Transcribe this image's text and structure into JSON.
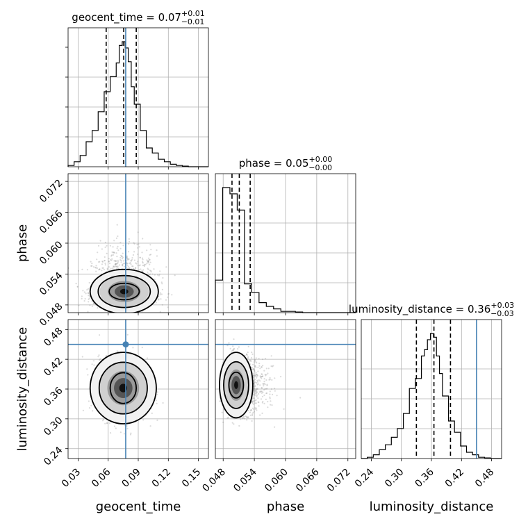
{
  "chart_data": {
    "type": "corner",
    "parameters": [
      {
        "name": "geocent_time",
        "range": [
          0.02,
          0.16
        ],
        "ticks": [
          0.03,
          0.06,
          0.09,
          0.12,
          0.15
        ],
        "tick_labels": [
          "0.03",
          "0.06",
          "0.09",
          "0.12",
          "0.15"
        ],
        "title_text": "geocent_time = 0.07",
        "title_upper": "+0.01",
        "title_lower": "−0.01",
        "quantiles": [
          0.058,
          0.0755,
          0.088
        ],
        "truth": 0.0775,
        "hist_edges": [
          0.02,
          0.026,
          0.032,
          0.038,
          0.044,
          0.05,
          0.056,
          0.062,
          0.068,
          0.071,
          0.074,
          0.077,
          0.08,
          0.083,
          0.086,
          0.092,
          0.098,
          0.104,
          0.11,
          0.116,
          0.122,
          0.128,
          0.134,
          0.14,
          0.146,
          0.152,
          0.16
        ],
        "hist_values": [
          0.01,
          0.04,
          0.09,
          0.2,
          0.29,
          0.44,
          0.6,
          0.72,
          0.83,
          0.97,
          1.0,
          0.95,
          0.84,
          0.64,
          0.5,
          0.29,
          0.15,
          0.11,
          0.06,
          0.04,
          0.02,
          0.01,
          0.005,
          0.0,
          0.0,
          0.0
        ]
      },
      {
        "name": "phase",
        "range": [
          0.0465,
          0.0735
        ],
        "ticks": [
          0.048,
          0.054,
          0.06,
          0.066,
          0.072
        ],
        "tick_labels": [
          "0.048",
          "0.054",
          "0.060",
          "0.066",
          "0.072"
        ],
        "title_text": "phase = 0.05",
        "title_upper": "+0.00",
        "title_lower": "−0.00",
        "quantiles": [
          0.0497,
          0.0511,
          0.0532
        ],
        "truth": null,
        "hist_edges": [
          0.0465,
          0.0479,
          0.0493,
          0.0507,
          0.0521,
          0.0535,
          0.0549,
          0.0563,
          0.0577,
          0.0591,
          0.0605,
          0.0619,
          0.0633,
          0.0647,
          0.0661,
          0.0675,
          0.0689,
          0.0703,
          0.0735
        ],
        "hist_values": [
          0.26,
          1.0,
          0.95,
          0.82,
          0.23,
          0.16,
          0.08,
          0.05,
          0.03,
          0.01,
          0.01,
          0.005,
          0.0,
          0.0,
          0.0,
          0.0,
          0.0,
          0.0
        ]
      },
      {
        "name": "luminosity_distance",
        "range": [
          0.22,
          0.5
        ],
        "ticks": [
          0.24,
          0.3,
          0.36,
          0.42,
          0.48
        ],
        "tick_labels": [
          "0.24",
          "0.30",
          "0.36",
          "0.42",
          "0.48"
        ],
        "title_text": "luminosity_distance = 0.36",
        "title_upper": "+0.03",
        "title_lower": "−0.03",
        "quantiles": [
          0.33,
          0.365,
          0.398
        ],
        "truth": 0.45,
        "hist_edges": [
          0.22,
          0.232,
          0.244,
          0.256,
          0.268,
          0.28,
          0.292,
          0.304,
          0.316,
          0.328,
          0.34,
          0.346,
          0.352,
          0.358,
          0.364,
          0.37,
          0.376,
          0.382,
          0.394,
          0.406,
          0.418,
          0.43,
          0.442,
          0.454,
          0.466,
          0.478,
          0.49,
          0.5
        ],
        "hist_values": [
          0.0,
          0.01,
          0.03,
          0.07,
          0.11,
          0.17,
          0.24,
          0.36,
          0.56,
          0.64,
          0.82,
          0.87,
          0.95,
          1.0,
          0.97,
          0.82,
          0.68,
          0.5,
          0.3,
          0.21,
          0.1,
          0.05,
          0.03,
          0.01,
          0.005,
          0.0,
          0.0
        ]
      }
    ],
    "blobs": {
      "geocent_time|phase": {
        "center": [
          0.076,
          0.0506
        ],
        "spread": [
          0.016,
          0.0022
        ],
        "contours": [
          [
            0.015,
            0.0016
          ],
          [
            0.026,
            0.0031
          ],
          [
            0.034,
            0.0043
          ]
        ]
      },
      "geocent_time|luminosity_distance": {
        "center": [
          0.075,
          0.362
        ],
        "spread": [
          0.012,
          0.03
        ],
        "contours": [
          [
            0.013,
            0.031
          ],
          [
            0.024,
            0.052
          ],
          [
            0.033,
            0.072
          ]
        ]
      },
      "phase|luminosity_distance": {
        "center": [
          0.0505,
          0.368
        ],
        "spread": [
          0.0016,
          0.028
        ],
        "contours": [
          [
            0.0014,
            0.026
          ],
          [
            0.0024,
            0.047
          ],
          [
            0.0032,
            0.066
          ]
        ]
      }
    },
    "truth_point": {
      "x_param": "geocent_time",
      "y_param": "luminosity_distance",
      "x": 0.0775,
      "y": 0.45
    },
    "grid": true,
    "colors": {
      "truth": "#4682b4",
      "hist": "#000000",
      "samples": "#999999"
    }
  }
}
